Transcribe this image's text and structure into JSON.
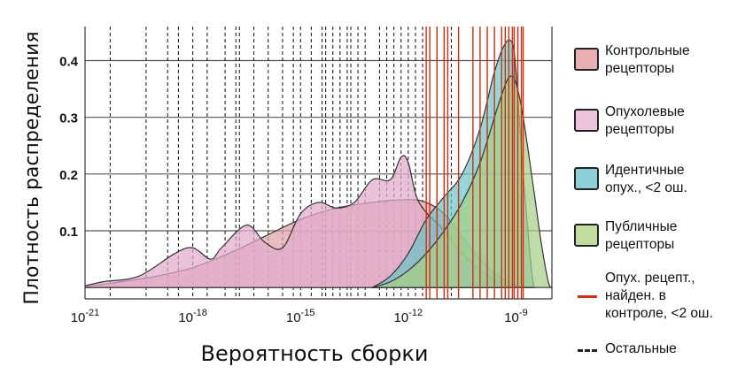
{
  "chart_data": {
    "type": "area",
    "xlabel": "Вероятность сборки",
    "ylabel": "Плотность распределения",
    "x_scale": "log10",
    "xlim": [
      1e-21,
      1e-08
    ],
    "ylim": [
      -0.02,
      0.46
    ],
    "x_ticks": [
      {
        "base": "10",
        "exp": "-21",
        "value": 1e-21
      },
      {
        "base": "10",
        "exp": "-18",
        "value": 1e-18
      },
      {
        "base": "10",
        "exp": "-15",
        "value": 1e-15
      },
      {
        "base": "10",
        "exp": "-12",
        "value": 1e-12
      },
      {
        "base": "10",
        "exp": "-9",
        "value": 1e-09
      }
    ],
    "y_ticks": [
      "0.1",
      "0.2",
      "0.3",
      "0.4"
    ],
    "y_tick_values": [
      0.1,
      0.2,
      0.3,
      0.4
    ],
    "grid": "horizontal",
    "legend_position": "right",
    "series": [
      {
        "name": "Контрольные рецепторы",
        "color": "#e0a0a8",
        "exponent_x": [
          -21.2,
          -20,
          -19,
          -18,
          -17,
          -16,
          -15,
          -14,
          -13,
          -12,
          -11.5,
          -11,
          -10.5,
          -10,
          -9.5,
          -9,
          -8.5
        ],
        "density": [
          0.0,
          0.01,
          0.02,
          0.035,
          0.06,
          0.09,
          0.12,
          0.14,
          0.15,
          0.155,
          0.15,
          0.13,
          0.09,
          0.05,
          0.02,
          0.005,
          0.0
        ]
      },
      {
        "name": "Опухолевые рецепторы",
        "color": "#e2aacb",
        "exponent_x": [
          -21.2,
          -20.5,
          -19.5,
          -18.5,
          -18,
          -17.5,
          -17.2,
          -16.5,
          -16,
          -15.5,
          -15,
          -14.5,
          -14,
          -13.5,
          -13,
          -12.5,
          -12.2,
          -12,
          -11.7,
          -11,
          -10.5,
          -10,
          -9.5,
          -9,
          -8.5
        ],
        "density": [
          0.0,
          0.01,
          0.02,
          0.06,
          0.07,
          0.05,
          0.07,
          0.11,
          0.08,
          0.07,
          0.13,
          0.15,
          0.14,
          0.15,
          0.19,
          0.19,
          0.23,
          0.22,
          0.15,
          0.1,
          0.06,
          0.03,
          0.01,
          0.003,
          0.0
        ]
      },
      {
        "name": "Идентичные опух., <2 ош.",
        "color": "#6ac4c8",
        "exponent_x": [
          -13,
          -12.5,
          -12,
          -11.5,
          -11,
          -10.5,
          -10,
          -9.6,
          -9.3,
          -9.1,
          -9,
          -8.8,
          -8.6,
          -8.5
        ],
        "density": [
          0.0,
          0.02,
          0.06,
          0.12,
          0.16,
          0.2,
          0.28,
          0.38,
          0.43,
          0.43,
          0.38,
          0.2,
          0.05,
          0.0
        ]
      },
      {
        "name": "Публичные рецепторы",
        "color": "#a8cf88",
        "exponent_x": [
          -13,
          -12.5,
          -12,
          -11.5,
          -11,
          -10.5,
          -10,
          -9.5,
          -9.2,
          -9,
          -8.8,
          -8.5,
          -8.3,
          -8.1,
          -8
        ],
        "density": [
          0.0,
          0.01,
          0.03,
          0.06,
          0.1,
          0.15,
          0.22,
          0.32,
          0.37,
          0.36,
          0.3,
          0.17,
          0.08,
          0.01,
          0.0
        ]
      }
    ],
    "lines": [
      {
        "name": "Опух. рецепт., найден. в контроле, <2 ош.",
        "color": "#d03010",
        "style": "solid",
        "exponent_x": [
          -11.5,
          -11.4,
          -11.2,
          -11.0,
          -10.9,
          -10.6,
          -10.2,
          -10.0,
          -9.8,
          -9.6,
          -9.4,
          -9.3,
          -9.2,
          -9.1,
          -9.05,
          -8.95,
          -8.85,
          -8.8
        ]
      },
      {
        "name": "Остальные",
        "color": "#222222",
        "style": "dashed",
        "exponent_x": [
          -20.3,
          -19.3,
          -18.7,
          -18.4,
          -18.0,
          -17.6,
          -17.1,
          -16.8,
          -16.7,
          -16.3,
          -15.9,
          -15.5,
          -15.2,
          -15.0,
          -14.7,
          -14.4,
          -14.3,
          -14.1,
          -13.9,
          -13.7,
          -13.6,
          -13.4,
          -13.2,
          -12.8,
          -12.6,
          -12.4,
          -12.2,
          -12.0,
          -11.8,
          -11.6,
          -11.4,
          -11.2,
          -11.0,
          -10.8,
          -10.6
        ]
      }
    ]
  },
  "legend": [
    {
      "label": "Контрольные\nрецепторы",
      "kind": "box",
      "color": "#e8b0b4"
    },
    {
      "label": "Опухолевые\nрецепторы",
      "kind": "box",
      "color": "#edc4de"
    },
    {
      "label": "Идентичные\nопух., <2 ош.",
      "kind": "box",
      "color": "#8ccfd8"
    },
    {
      "label": "Публичные\nрецепторы",
      "kind": "box",
      "color": "#c2dda0"
    },
    {
      "label": "Опух. рецепт.,\nнайден. в\nконтроле, <2 ош.",
      "kind": "line",
      "color": "#d03010"
    },
    {
      "label": "Остальные",
      "kind": "dash",
      "color": "#222222"
    }
  ]
}
